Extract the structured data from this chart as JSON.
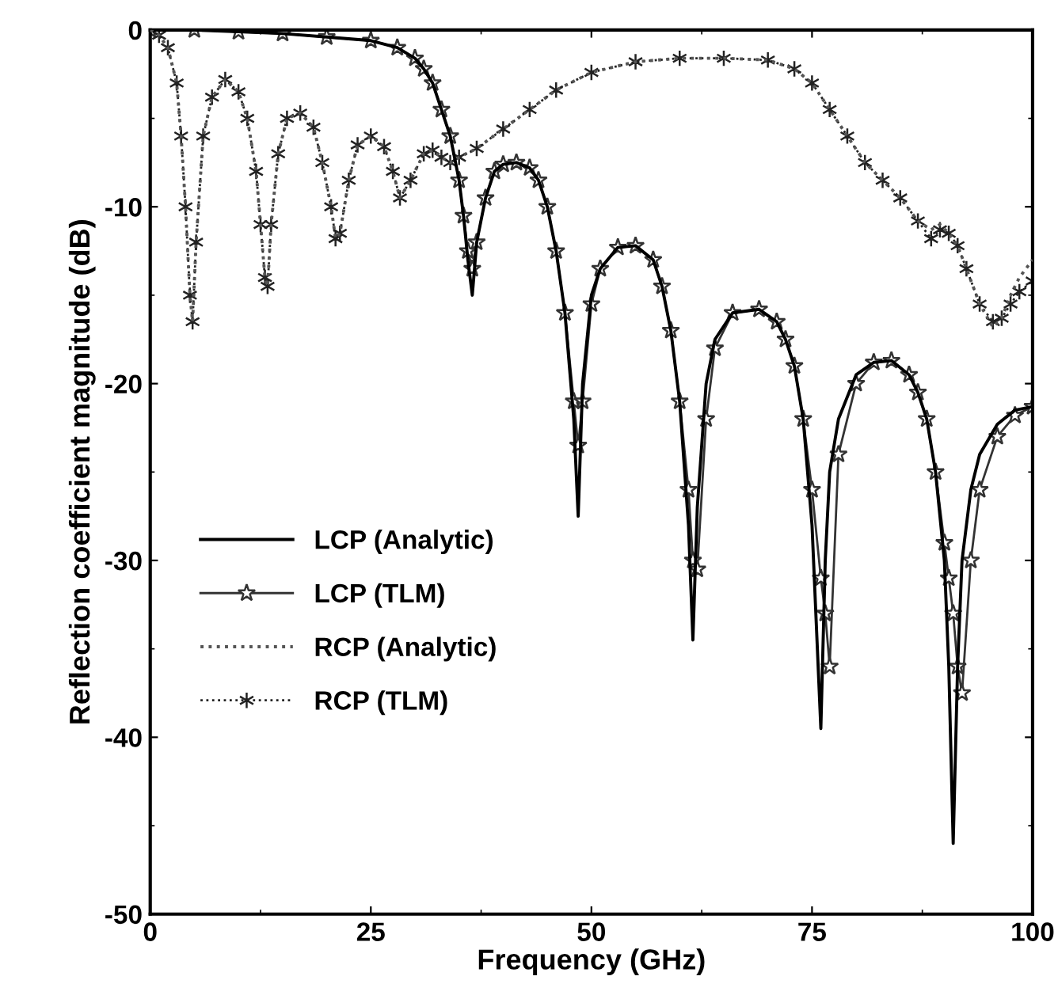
{
  "chart_data": {
    "type": "line",
    "xlabel": "Frequency (GHz)",
    "ylabel": "Reflection coefficient magnitude (dB)",
    "xlim": [
      0,
      100
    ],
    "xticks": [
      0,
      25,
      50,
      75,
      100
    ],
    "ylim": [
      -50,
      0
    ],
    "yticks": [
      -50,
      -40,
      -30,
      -20,
      -10,
      0
    ],
    "grid": false,
    "legend": "center left",
    "series": [
      {
        "name": "LCP (Analytic)",
        "color": "#000000",
        "line_style": "solid",
        "marker": "none",
        "x": [
          0,
          5,
          10,
          15,
          20,
          25,
          28,
          30,
          31,
          32,
          33,
          34,
          35,
          35.5,
          36,
          36.5,
          37,
          38,
          39,
          40,
          41.5,
          43,
          44,
          45,
          46,
          47,
          48,
          48.5,
          49,
          50,
          51,
          53,
          55,
          57,
          58,
          59,
          60,
          61,
          61.5,
          62,
          63,
          64,
          66,
          69,
          71,
          72,
          73,
          74,
          75,
          76,
          76.5,
          77,
          78,
          80,
          82,
          84,
          86,
          87,
          88,
          89,
          90,
          90.5,
          91,
          91.5,
          92,
          93,
          94,
          96,
          98,
          100
        ],
        "values": [
          0,
          0,
          -0.1,
          -0.2,
          -0.4,
          -0.6,
          -1,
          -1.6,
          -2.2,
          -3,
          -4.5,
          -6,
          -8.5,
          -10.5,
          -13,
          -15,
          -12,
          -9.5,
          -8,
          -7.6,
          -7.5,
          -7.8,
          -8.5,
          -10,
          -12.5,
          -16,
          -22,
          -27.5,
          -20,
          -15,
          -13.5,
          -12.3,
          -12.2,
          -13,
          -14.5,
          -17,
          -21,
          -28,
          -34.5,
          -27,
          -20,
          -17.5,
          -16,
          -15.8,
          -16.5,
          -17.5,
          -19,
          -22,
          -28,
          -39.5,
          -30,
          -25,
          -22,
          -19.5,
          -18.8,
          -18.7,
          -19.5,
          -20.5,
          -22,
          -25,
          -30,
          -36,
          -46,
          -36,
          -30,
          -26,
          -24,
          -22.3,
          -21.5,
          -21.3
        ]
      },
      {
        "name": "LCP (TLM)",
        "color": "#333333",
        "line_style": "solid",
        "marker": "star",
        "x": [
          0,
          5,
          10,
          15,
          20,
          25,
          28,
          30,
          31,
          32,
          33,
          34,
          35,
          35.5,
          36,
          36.5,
          37,
          38,
          39,
          40,
          41.5,
          43,
          44,
          45,
          46,
          47,
          48,
          48.5,
          49,
          50,
          51,
          53,
          55,
          57,
          58,
          59,
          60,
          61,
          61.5,
          62,
          63,
          64,
          66,
          69,
          71,
          72,
          73,
          74,
          75,
          76,
          76.5,
          77,
          78,
          80,
          82,
          84,
          86,
          87,
          88,
          89,
          90,
          90.5,
          91,
          91.5,
          92,
          93,
          94,
          96,
          98,
          100
        ],
        "values": [
          0,
          0,
          -0.1,
          -0.2,
          -0.4,
          -0.6,
          -1,
          -1.6,
          -2.2,
          -3,
          -4.5,
          -6,
          -8.5,
          -10.5,
          -12.5,
          -13.5,
          -12,
          -9.5,
          -8,
          -7.6,
          -7.5,
          -7.8,
          -8.5,
          -10,
          -12.5,
          -16,
          -21,
          -23.5,
          -21,
          -15.5,
          -13.5,
          -12.3,
          -12.2,
          -13,
          -14.5,
          -17,
          -21,
          -26,
          -30,
          -30.5,
          -22,
          -18,
          -16,
          -15.8,
          -16.5,
          -17.5,
          -19,
          -22,
          -26,
          -31,
          -33,
          -36,
          -24,
          -20,
          -18.8,
          -18.7,
          -19.5,
          -20.5,
          -22,
          -25,
          -29,
          -31,
          -33,
          -36,
          -37.5,
          -30,
          -26,
          -23,
          -21.8,
          -21.3
        ]
      },
      {
        "name": "RCP (Analytic)",
        "color": "#555555",
        "line_style": "dotted",
        "marker": "none",
        "x": [
          0,
          1,
          2,
          3,
          3.5,
          4,
          4.5,
          4.8,
          5.2,
          6,
          7,
          8.5,
          10,
          11,
          12,
          12.5,
          13,
          13.3,
          13.7,
          14.5,
          15.5,
          17,
          18.5,
          19.5,
          20.5,
          21,
          21.5,
          22.5,
          23.5,
          25,
          26.5,
          27.5,
          28.3,
          29.5,
          31,
          32,
          33,
          34,
          35,
          37,
          40,
          43,
          46,
          50,
          55,
          60,
          65,
          70,
          73,
          75,
          77,
          79,
          81,
          83,
          85,
          87,
          88.5,
          89.5,
          90.5,
          91.5,
          92.5,
          94,
          95.5,
          96.5,
          97.5,
          98.5,
          100
        ],
        "values": [
          0,
          -0.3,
          -1,
          -3,
          -6,
          -10,
          -15,
          -16.5,
          -12,
          -6,
          -3.8,
          -2.8,
          -3.5,
          -5,
          -8,
          -11,
          -14,
          -14.5,
          -11,
          -7,
          -5,
          -4.7,
          -5.5,
          -7.5,
          -10,
          -11.8,
          -11.5,
          -8.5,
          -6.5,
          -6,
          -6.6,
          -8,
          -9.5,
          -8.5,
          -7,
          -6.8,
          -7.2,
          -7.5,
          -7.2,
          -6.7,
          -5.6,
          -4.5,
          -3.4,
          -2.4,
          -1.8,
          -1.6,
          -1.6,
          -1.7,
          -2.2,
          -3,
          -4.5,
          -6,
          -7.5,
          -8.5,
          -9.5,
          -10.8,
          -11.3,
          -11,
          -11.5,
          -12.2,
          -13.5,
          -15.5,
          -16.8,
          -16.3,
          -15,
          -14,
          -13
        ]
      },
      {
        "name": "RCP (TLM)",
        "color": "#222222",
        "line_style": "dotted",
        "marker": "cross",
        "x": [
          0,
          1,
          2,
          3,
          3.5,
          4,
          4.5,
          4.8,
          5.2,
          6,
          7,
          8.5,
          10,
          11,
          12,
          12.5,
          13,
          13.3,
          13.7,
          14.5,
          15.5,
          17,
          18.5,
          19.5,
          20.5,
          21,
          21.5,
          22.5,
          23.5,
          25,
          26.5,
          27.5,
          28.3,
          29.5,
          31,
          32,
          33,
          34,
          35,
          37,
          40,
          43,
          46,
          50,
          55,
          60,
          65,
          70,
          73,
          75,
          77,
          79,
          81,
          83,
          85,
          87,
          88.5,
          89.5,
          90.5,
          91.5,
          92.5,
          94,
          95.5,
          96.5,
          97.5,
          98.5,
          100
        ],
        "values": [
          0,
          -0.3,
          -1,
          -3,
          -6,
          -10,
          -15,
          -16.5,
          -12,
          -6,
          -3.8,
          -2.8,
          -3.5,
          -5,
          -8,
          -11,
          -14,
          -14.5,
          -11,
          -7,
          -5,
          -4.7,
          -5.5,
          -7.5,
          -10,
          -11.8,
          -11.5,
          -8.5,
          -6.5,
          -6,
          -6.6,
          -8,
          -9.5,
          -8.5,
          -7,
          -6.8,
          -7.2,
          -7.5,
          -7.2,
          -6.7,
          -5.6,
          -4.5,
          -3.4,
          -2.4,
          -1.8,
          -1.6,
          -1.6,
          -1.7,
          -2.2,
          -3,
          -4.5,
          -6,
          -7.5,
          -8.5,
          -9.5,
          -10.8,
          -11.8,
          -11.3,
          -11.5,
          -12.2,
          -13.5,
          -15.5,
          -16.5,
          -16.3,
          -15.5,
          -14.8,
          -14.2
        ]
      }
    ]
  }
}
